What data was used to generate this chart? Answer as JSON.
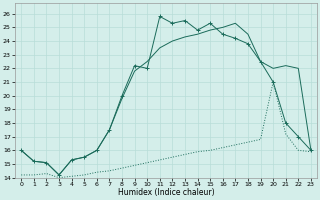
{
  "xlabel": "Humidex (Indice chaleur)",
  "background_color": "#d4eeea",
  "grid_color": "#b8ddd8",
  "line_color": "#1a6b5a",
  "xlim": [
    -0.5,
    23.5
  ],
  "ylim": [
    14,
    26.8
  ],
  "xticks": [
    0,
    1,
    2,
    3,
    4,
    5,
    6,
    7,
    8,
    9,
    10,
    11,
    12,
    13,
    14,
    15,
    16,
    17,
    18,
    19,
    20,
    21,
    22,
    23
  ],
  "yticks": [
    14,
    15,
    16,
    17,
    18,
    19,
    20,
    21,
    22,
    23,
    24,
    25,
    26
  ],
  "line1_x": [
    0,
    1,
    2,
    3,
    4,
    5,
    6,
    7,
    8,
    9,
    10,
    11,
    12,
    13,
    14,
    15,
    16,
    17,
    18,
    19,
    20,
    21,
    22,
    23
  ],
  "line1_y": [
    16.0,
    15.2,
    15.1,
    14.2,
    15.3,
    15.5,
    16.0,
    17.5,
    20.0,
    22.2,
    22.0,
    25.8,
    25.3,
    25.5,
    24.8,
    25.3,
    24.5,
    24.2,
    23.8,
    22.5,
    21.0,
    18.0,
    17.0,
    16.0
  ],
  "line2_x": [
    0,
    1,
    2,
    3,
    4,
    5,
    6,
    7,
    8,
    9,
    10,
    11,
    12,
    13,
    14,
    15,
    16,
    17,
    18,
    19,
    20,
    21,
    22,
    23
  ],
  "line2_y": [
    16.0,
    15.2,
    15.1,
    14.2,
    15.3,
    15.5,
    16.0,
    17.5,
    19.8,
    21.8,
    22.5,
    23.5,
    24.0,
    24.3,
    24.5,
    24.8,
    25.0,
    25.3,
    24.5,
    22.5,
    22.0,
    22.2,
    22.0,
    16.0
  ],
  "line3_x": [
    0,
    1,
    2,
    3,
    4,
    5,
    6,
    7,
    8,
    9,
    10,
    11,
    12,
    13,
    14,
    15,
    16,
    17,
    18,
    19,
    20,
    21,
    22,
    23
  ],
  "line3_y": [
    14.2,
    14.2,
    14.3,
    14.0,
    14.1,
    14.2,
    14.4,
    14.5,
    14.7,
    14.9,
    15.1,
    15.3,
    15.5,
    15.7,
    15.9,
    16.0,
    16.2,
    16.4,
    16.6,
    16.8,
    21.0,
    17.2,
    16.0,
    15.9
  ]
}
